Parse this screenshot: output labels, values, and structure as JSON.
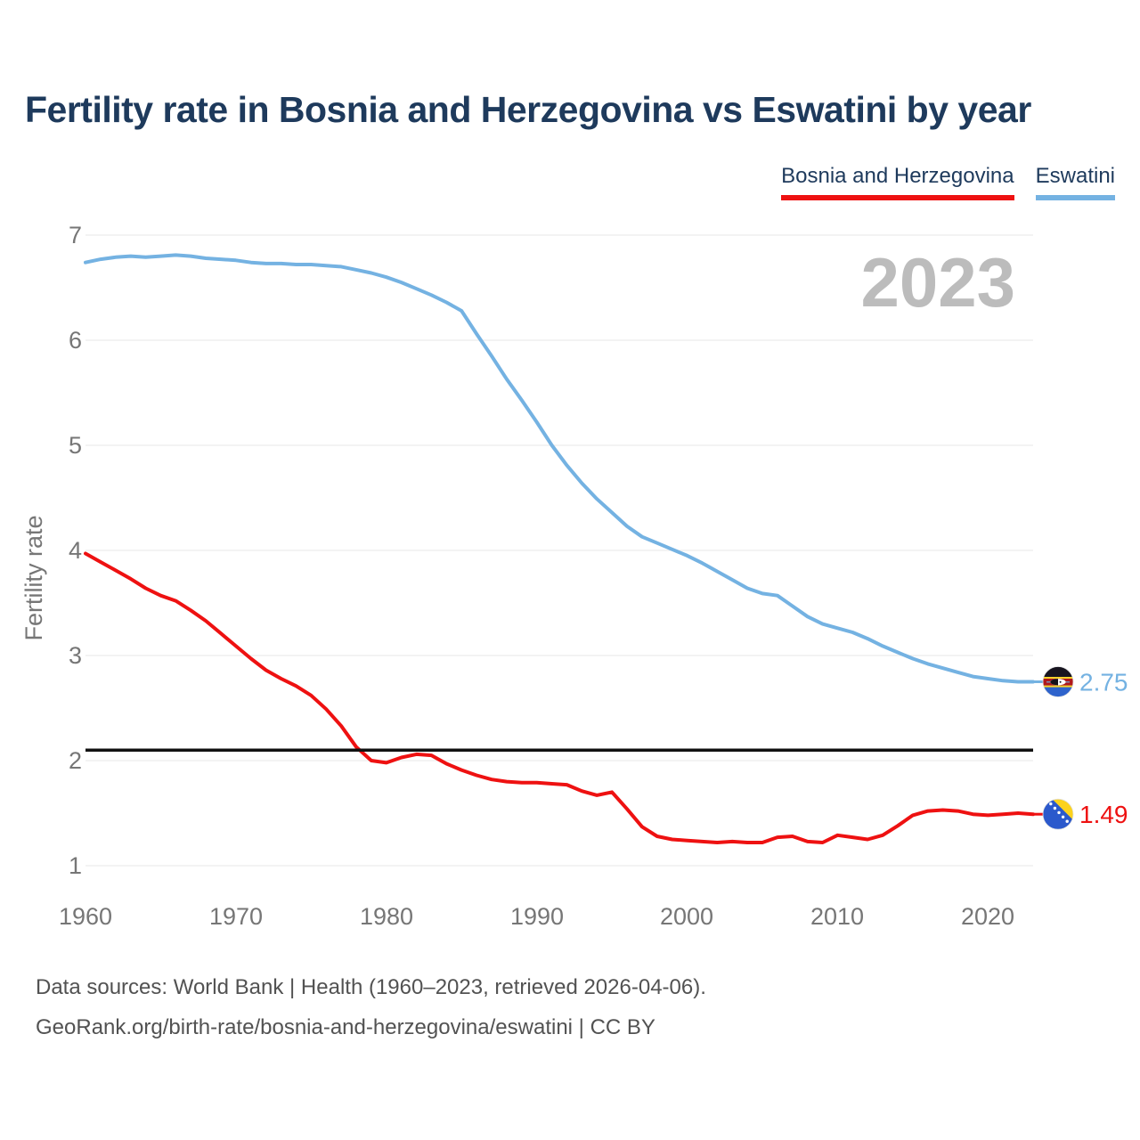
{
  "header": {
    "title": "Fertility rate in Bosnia and Herzegovina vs Eswatini by year"
  },
  "legend": [
    {
      "label": "Bosnia and Herzegovina",
      "color": "#ee1111"
    },
    {
      "label": "Eswatini",
      "color": "#74b2e2"
    }
  ],
  "watermark": "2023",
  "chart_data": {
    "type": "line",
    "title": "Fertility rate in Bosnia and Herzegovina vs Eswatini by year",
    "xlabel": "",
    "ylabel": "Fertility rate",
    "xlim": [
      1960,
      2023
    ],
    "ylim": [
      1,
      7
    ],
    "grid": true,
    "x_ticks": [
      1960,
      1970,
      1980,
      1990,
      2000,
      2010,
      2020
    ],
    "y_ticks_top_to_bottom": [
      7,
      6,
      5,
      4,
      3,
      2,
      1
    ],
    "reference_line": {
      "value": 2.1,
      "color": "#111111"
    },
    "years": [
      1960,
      1961,
      1962,
      1963,
      1964,
      1965,
      1966,
      1967,
      1968,
      1969,
      1970,
      1971,
      1972,
      1973,
      1974,
      1975,
      1976,
      1977,
      1978,
      1979,
      1980,
      1981,
      1982,
      1983,
      1984,
      1985,
      1986,
      1987,
      1988,
      1989,
      1990,
      1991,
      1992,
      1993,
      1994,
      1995,
      1996,
      1997,
      1998,
      1999,
      2000,
      2001,
      2002,
      2003,
      2004,
      2005,
      2006,
      2007,
      2008,
      2009,
      2010,
      2011,
      2012,
      2013,
      2014,
      2015,
      2016,
      2017,
      2018,
      2019,
      2020,
      2021,
      2022,
      2023
    ],
    "series": [
      {
        "name": "Bosnia and Herzegovina",
        "color": "#ee1111",
        "end_label": "1.49",
        "values": [
          3.97,
          3.89,
          3.81,
          3.73,
          3.64,
          3.57,
          3.52,
          3.43,
          3.33,
          3.21,
          3.09,
          2.97,
          2.86,
          2.78,
          2.71,
          2.62,
          2.49,
          2.33,
          2.13,
          2.0,
          1.98,
          2.03,
          2.06,
          2.05,
          1.97,
          1.91,
          1.86,
          1.82,
          1.8,
          1.79,
          1.79,
          1.78,
          1.77,
          1.71,
          1.67,
          1.7,
          1.54,
          1.37,
          1.28,
          1.25,
          1.24,
          1.23,
          1.22,
          1.23,
          1.22,
          1.22,
          1.27,
          1.28,
          1.23,
          1.22,
          1.29,
          1.27,
          1.25,
          1.29,
          1.38,
          1.48,
          1.52,
          1.53,
          1.52,
          1.49,
          1.48,
          1.49,
          1.5,
          1.49
        ]
      },
      {
        "name": "Eswatini",
        "color": "#74b2e2",
        "end_label": "2.75",
        "values": [
          6.74,
          6.77,
          6.79,
          6.8,
          6.79,
          6.8,
          6.81,
          6.8,
          6.78,
          6.77,
          6.76,
          6.74,
          6.73,
          6.73,
          6.72,
          6.72,
          6.71,
          6.7,
          6.67,
          6.64,
          6.6,
          6.55,
          6.49,
          6.43,
          6.36,
          6.28,
          6.06,
          5.85,
          5.63,
          5.43,
          5.22,
          5.0,
          4.81,
          4.64,
          4.49,
          4.36,
          4.23,
          4.13,
          4.07,
          4.01,
          3.95,
          3.88,
          3.8,
          3.72,
          3.64,
          3.59,
          3.57,
          3.47,
          3.37,
          3.3,
          3.26,
          3.22,
          3.16,
          3.09,
          3.03,
          2.97,
          2.92,
          2.88,
          2.84,
          2.8,
          2.78,
          2.76,
          2.75,
          2.75
        ]
      }
    ]
  },
  "footer": {
    "line1": "Data sources: World Bank | Health (1960–2023, retrieved 2026-04-06).",
    "line2": "GeoRank.org/birth-rate/bosnia-and-herzegovina/eswatini | CC BY"
  }
}
